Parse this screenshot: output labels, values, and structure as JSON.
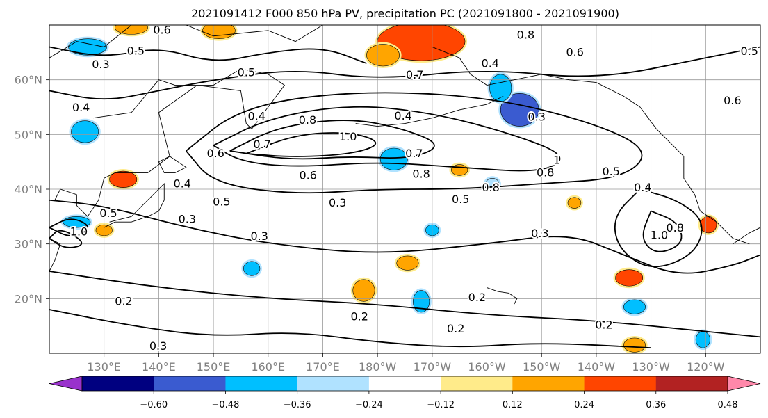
{
  "chart_data": {
    "type": "heatmap",
    "title": "2021091412 F000 850 hPa PV, precipitation PC (2021091800 - 2021091900)",
    "map": {
      "lon_range": [
        120,
        250
      ],
      "lat_range": [
        10,
        70
      ],
      "xticks": [
        {
          "lon": 130,
          "label": "130°E"
        },
        {
          "lon": 140,
          "label": "140°E"
        },
        {
          "lon": 150,
          "label": "150°E"
        },
        {
          "lon": 160,
          "label": "160°E"
        },
        {
          "lon": 170,
          "label": "170°E"
        },
        {
          "lon": 180,
          "label": "180°W"
        },
        {
          "lon": 190,
          "label": "170°W"
        },
        {
          "lon": 200,
          "label": "160°W"
        },
        {
          "lon": 210,
          "label": "150°W"
        },
        {
          "lon": 220,
          "label": "140°W"
        },
        {
          "lon": 230,
          "label": "130°W"
        },
        {
          "lon": 240,
          "label": "120°W"
        }
      ],
      "yticks": [
        {
          "lat": 20,
          "label": "20°N"
        },
        {
          "lat": 30,
          "label": "30°N"
        },
        {
          "lat": 40,
          "label": "40°N"
        },
        {
          "lat": 50,
          "label": "50°N"
        },
        {
          "lat": 60,
          "label": "60°N"
        }
      ],
      "grid": true
    },
    "colorbar": {
      "levels": [
        -0.6,
        -0.48,
        -0.36,
        -0.24,
        -0.12,
        0.12,
        0.24,
        0.36,
        0.48,
        0.6
      ],
      "tick_labels": [
        "−0.60",
        "−0.48",
        "−0.36",
        "−0.24",
        "−0.12",
        "0.12",
        "0.24",
        "0.36",
        "0.48",
        "0.60"
      ],
      "colors": [
        "#9932cc",
        "#000080",
        "#3a5bd0",
        "#00bfff",
        "#b0e2ff",
        "#ffffff",
        "#ffeb8a",
        "#ffa500",
        "#ff4500",
        "#b22222",
        "#ff88aa"
      ],
      "extend": "both"
    },
    "contour_labels": [
      {
        "text": "0.6",
        "lon": 140.6,
        "lat": 69
      },
      {
        "text": "0.5",
        "lon": 135.8,
        "lat": 65.2
      },
      {
        "text": "0.3",
        "lon": 129.4,
        "lat": 62.7
      },
      {
        "text": "0.4",
        "lon": 125.8,
        "lat": 54.8
      },
      {
        "text": "0.5",
        "lon": 156,
        "lat": 61.2
      },
      {
        "text": "0.4",
        "lon": 157.9,
        "lat": 53.2
      },
      {
        "text": "0.8",
        "lon": 167.2,
        "lat": 52.5
      },
      {
        "text": "0.7",
        "lon": 158.9,
        "lat": 48.1
      },
      {
        "text": "0.6",
        "lon": 150.4,
        "lat": 46.4
      },
      {
        "text": "1.0",
        "lon": 174.6,
        "lat": 49.5
      },
      {
        "text": "0.4",
        "lon": 184.7,
        "lat": 53.3
      },
      {
        "text": "0.6",
        "lon": 167.3,
        "lat": 42.4
      },
      {
        "text": "0.7",
        "lon": 186.7,
        "lat": 46.4
      },
      {
        "text": "0.8",
        "lon": 188,
        "lat": 42.7
      },
      {
        "text": "0.5",
        "lon": 195.2,
        "lat": 38
      },
      {
        "text": "0.3",
        "lon": 172.7,
        "lat": 37.4
      },
      {
        "text": "0.5",
        "lon": 151.5,
        "lat": 37.6
      },
      {
        "text": "0.4",
        "lon": 144.3,
        "lat": 40.9
      },
      {
        "text": "0.3",
        "lon": 145.2,
        "lat": 34.4
      },
      {
        "text": "0.5",
        "lon": 130.8,
        "lat": 35.5
      },
      {
        "text": "0.3",
        "lon": 158.4,
        "lat": 31.3
      },
      {
        "text": "1.0",
        "lon": 125.4,
        "lat": 32.1
      },
      {
        "text": "0.2",
        "lon": 133.6,
        "lat": 19.4
      },
      {
        "text": "0.3",
        "lon": 139.9,
        "lat": 11.2
      },
      {
        "text": "0.2",
        "lon": 198.2,
        "lat": 20.1
      },
      {
        "text": "0.2",
        "lon": 176.7,
        "lat": 16.6
      },
      {
        "text": "0.2",
        "lon": 194.3,
        "lat": 14.4
      },
      {
        "text": "0.2",
        "lon": 221.4,
        "lat": 15.1
      },
      {
        "text": "0.3",
        "lon": 209.7,
        "lat": 31.8
      },
      {
        "text": "0.8",
        "lon": 210.7,
        "lat": 42.9
      },
      {
        "text": "0.8",
        "lon": 200.7,
        "lat": 40.2
      },
      {
        "text": "1",
        "lon": 212.8,
        "lat": 45.2
      },
      {
        "text": "0.5",
        "lon": 222.7,
        "lat": 43.1
      },
      {
        "text": "0.4",
        "lon": 228.5,
        "lat": 40.2
      },
      {
        "text": "1.0",
        "lon": 231.5,
        "lat": 31.5
      },
      {
        "text": "0.8",
        "lon": 234.4,
        "lat": 32.8
      },
      {
        "text": "0.3",
        "lon": 209.1,
        "lat": 53.1
      },
      {
        "text": "0.6",
        "lon": 216.1,
        "lat": 64.9
      },
      {
        "text": "0.4",
        "lon": 200.6,
        "lat": 62.9
      },
      {
        "text": "0.8",
        "lon": 207.1,
        "lat": 68.1
      },
      {
        "text": "0.7",
        "lon": 186.8,
        "lat": 60.8
      },
      {
        "text": "0.5",
        "lon": 248,
        "lat": 65.1
      },
      {
        "text": "0.6",
        "lon": 244.9,
        "lat": 56.1
      }
    ],
    "pc_regions": [
      {
        "value": 0.42,
        "lon": 188,
        "lat": 67,
        "rx": 8,
        "ry": 3.5
      },
      {
        "value": 0.3,
        "lon": 181,
        "lat": 64.5,
        "rx": 3,
        "ry": 2
      },
      {
        "value": 0.28,
        "lon": 151,
        "lat": 69,
        "rx": 3,
        "ry": 1.5
      },
      {
        "value": 0.28,
        "lon": 135,
        "lat": 69.5,
        "rx": 3,
        "ry": 1.2
      },
      {
        "value": -0.42,
        "lon": 206,
        "lat": 54.5,
        "rx": 3.5,
        "ry": 3
      },
      {
        "value": -0.25,
        "lon": 202.5,
        "lat": 58.5,
        "rx": 2,
        "ry": 2.5
      },
      {
        "value": -0.26,
        "lon": 126.5,
        "lat": 50.5,
        "rx": 2.5,
        "ry": 2
      },
      {
        "value": -0.25,
        "lon": 127,
        "lat": 66,
        "rx": 3.5,
        "ry": 1.5
      },
      {
        "value": -0.26,
        "lon": 183,
        "lat": 45.5,
        "rx": 2.5,
        "ry": 2
      },
      {
        "value": 0.36,
        "lon": 133.5,
        "lat": 41.8,
        "rx": 2.5,
        "ry": 1.5
      },
      {
        "value": 0.3,
        "lon": 195,
        "lat": 43.5,
        "rx": 1.5,
        "ry": 1
      },
      {
        "value": 0.3,
        "lon": 177.5,
        "lat": 21.5,
        "rx": 2,
        "ry": 2
      },
      {
        "value": 0.28,
        "lon": 185.5,
        "lat": 26.5,
        "rx": 2,
        "ry": 1.3
      },
      {
        "value": -0.25,
        "lon": 157,
        "lat": 25.5,
        "rx": 1.5,
        "ry": 1.3
      },
      {
        "value": -0.25,
        "lon": 188,
        "lat": 19.5,
        "rx": 1.5,
        "ry": 2
      },
      {
        "value": -0.25,
        "lon": 227,
        "lat": 18.5,
        "rx": 2,
        "ry": 1.3
      },
      {
        "value": -0.25,
        "lon": 190,
        "lat": 32.5,
        "rx": 1.2,
        "ry": 1
      },
      {
        "value": -0.24,
        "lon": 201,
        "lat": 41,
        "rx": 1.2,
        "ry": 1
      },
      {
        "value": 0.42,
        "lon": 226,
        "lat": 23.8,
        "rx": 2.5,
        "ry": 1.5
      },
      {
        "value": 0.3,
        "lon": 227,
        "lat": 11.5,
        "rx": 2,
        "ry": 1.3
      },
      {
        "value": 0.3,
        "lon": 216,
        "lat": 37.5,
        "rx": 1.2,
        "ry": 1
      },
      {
        "value": 0.42,
        "lon": 240.5,
        "lat": 33.5,
        "rx": 1.5,
        "ry": 1.5
      },
      {
        "value": -0.25,
        "lon": 239.5,
        "lat": 12.5,
        "rx": 1.3,
        "ry": 1.5
      },
      {
        "value": 0.28,
        "lon": 130,
        "lat": 32.5,
        "rx": 1.5,
        "ry": 1
      },
      {
        "value": -0.25,
        "lon": 125,
        "lat": 34,
        "rx": 2.5,
        "ry": 1
      }
    ]
  }
}
